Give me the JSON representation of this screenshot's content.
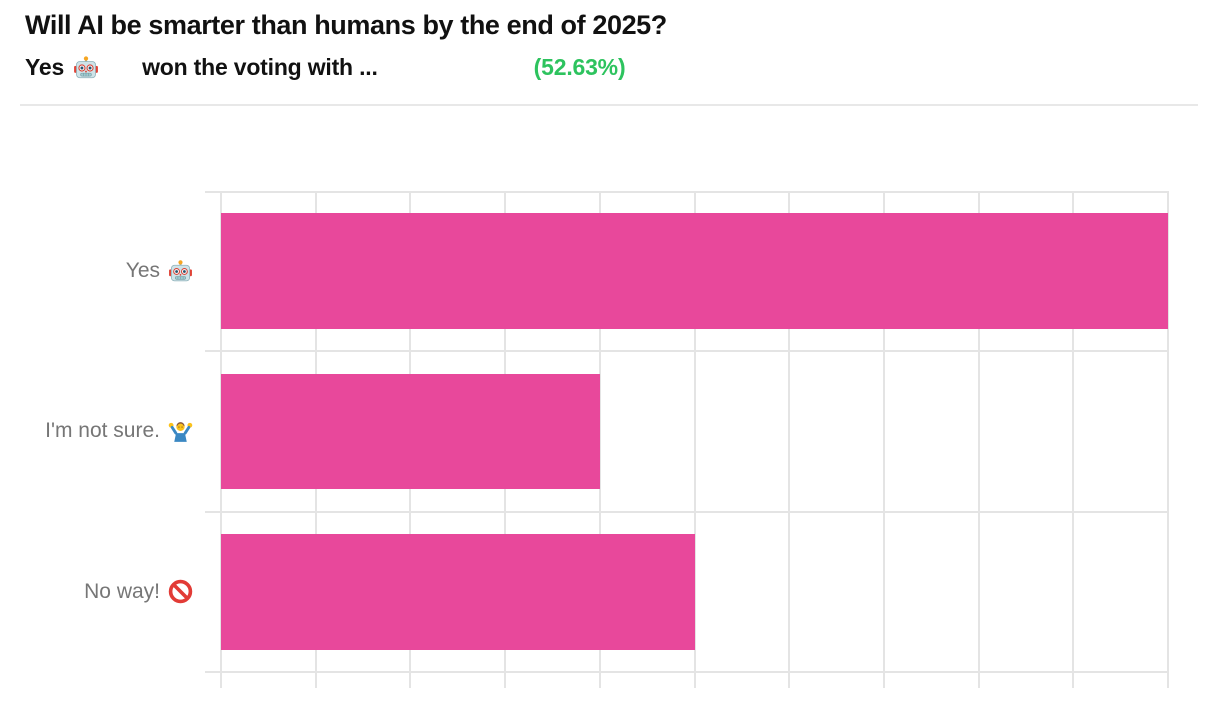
{
  "header": {
    "title": "Will AI be smarter than humans by the end of 2025?",
    "subtitle": {
      "winner": "Yes",
      "winner_emoji": "🤖",
      "text": "won the voting with ...",
      "percent": "(52.63%)"
    }
  },
  "colors": {
    "bar": "#E8489B",
    "percent_green": "#2DC35E",
    "grid": "#E4E4E4",
    "label_text": "#767676",
    "title_text": "#111111",
    "divider": "#E8E8E8"
  },
  "chart_data": {
    "type": "bar",
    "orientation": "horizontal",
    "title": "Will AI be smarter than humans by the end of 2025?",
    "subtitle": "Yes 🤖 won the voting with ... (52.63%)",
    "categories": [
      {
        "text": "Yes",
        "emoji": "🤖",
        "emoji_name": "robot"
      },
      {
        "text": "I'm not sure.",
        "emoji": "🤷‍♂️",
        "emoji_name": "shrug"
      },
      {
        "text": "No way!",
        "emoji": "🚫",
        "emoji_name": "no-entry"
      }
    ],
    "values": [
      10,
      4,
      5
    ],
    "winner_percent_label": "(52.63%)",
    "xlim": [
      0,
      10
    ],
    "grid_step": 1,
    "grid": true,
    "legend": false,
    "xlabel": "",
    "ylabel": ""
  }
}
